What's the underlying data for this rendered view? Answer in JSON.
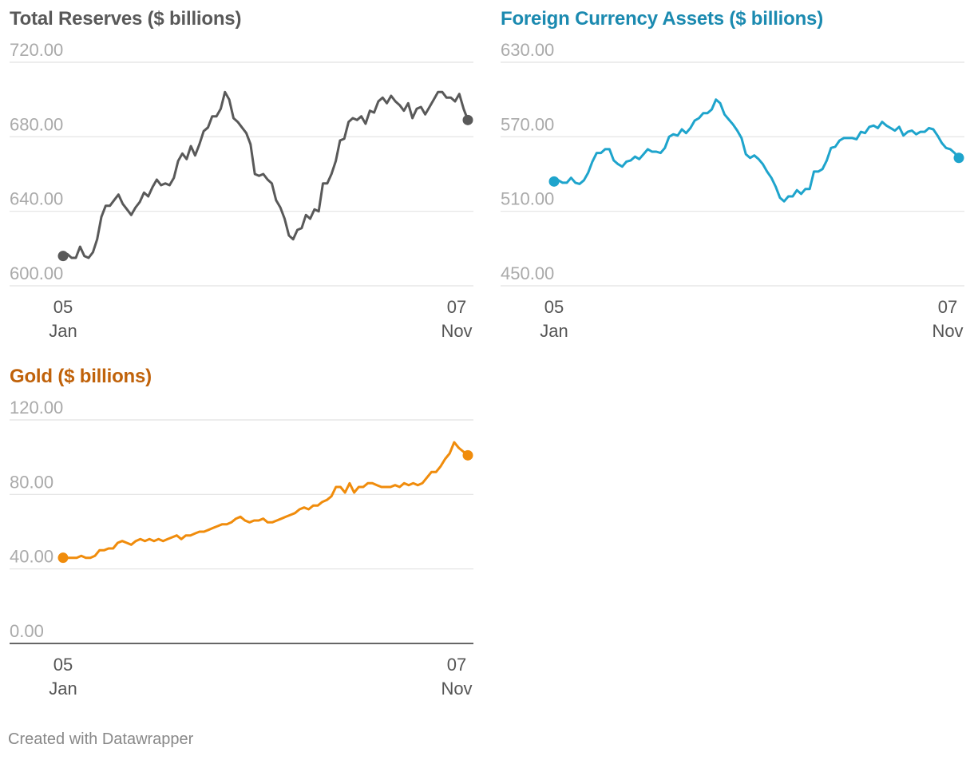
{
  "footer": {
    "credit": "Created with Datawrapper"
  },
  "chart_data": [
    {
      "type": "line",
      "title": "Total Reserves ($ billions)",
      "title_color": "#595959",
      "line_color": "#595959",
      "ylim": [
        600,
        720
      ],
      "yticks": [
        "720.00",
        "680.00",
        "640.00",
        "600.00"
      ],
      "xticks": [
        {
          "day": "05",
          "month": "Jan"
        },
        {
          "day": "07",
          "month": "Nov"
        }
      ],
      "values": [
        616,
        617,
        615,
        615,
        621,
        616,
        615,
        618,
        625,
        637,
        643,
        643,
        646,
        649,
        644,
        641,
        638,
        642,
        645,
        650,
        648,
        653,
        657,
        654,
        655,
        654,
        658,
        667,
        671,
        668,
        675,
        670,
        676,
        683,
        685,
        691,
        691,
        695,
        704,
        700,
        690,
        688,
        685,
        682,
        676,
        660,
        659,
        660,
        657,
        655,
        646,
        642,
        636,
        627,
        625,
        630,
        631,
        638,
        636,
        641,
        640,
        655,
        655,
        660,
        667,
        678,
        679,
        688,
        690,
        689,
        691,
        687,
        694,
        693,
        699,
        701,
        698,
        702,
        699,
        697,
        694,
        698,
        690,
        695,
        696,
        692,
        696,
        700,
        704,
        704,
        701,
        701,
        699,
        703,
        695,
        689
      ],
      "grid": true
    },
    {
      "type": "line",
      "title": "Foreign Currency Assets ($ billions)",
      "title_color": "#1b8ab0",
      "line_color": "#1ea4cc",
      "ylim": [
        450,
        630
      ],
      "yticks": [
        "630.00",
        "570.00",
        "510.00",
        "450.00"
      ],
      "xticks": [
        {
          "day": "05",
          "month": "Jan"
        },
        {
          "day": "07",
          "month": "Nov"
        }
      ],
      "values": [
        534,
        535,
        533,
        533,
        537,
        533,
        532,
        535,
        541,
        550,
        557,
        557,
        560,
        560,
        551,
        548,
        546,
        550,
        551,
        554,
        552,
        556,
        560,
        558,
        558,
        557,
        561,
        570,
        572,
        571,
        576,
        573,
        577,
        583,
        585,
        589,
        589,
        592,
        600,
        597,
        588,
        584,
        580,
        575,
        569,
        556,
        553,
        555,
        552,
        548,
        542,
        537,
        530,
        521,
        518,
        522,
        522,
        527,
        524,
        528,
        528,
        542,
        542,
        544,
        551,
        561,
        562,
        567,
        569,
        569,
        569,
        568,
        574,
        573,
        578,
        579,
        577,
        582,
        579,
        577,
        575,
        578,
        571,
        574,
        575,
        572,
        574,
        574,
        577,
        576,
        571,
        565,
        561,
        560,
        557,
        553
      ],
      "grid": true
    },
    {
      "type": "line",
      "title": "Gold ($ billions)",
      "title_color": "#c0620a",
      "line_color": "#f08c0c",
      "ylim": [
        0,
        120
      ],
      "yticks": [
        "120.00",
        "80.00",
        "40.00",
        "0.00"
      ],
      "xticks": [
        {
          "day": "05",
          "month": "Jan"
        },
        {
          "day": "07",
          "month": "Nov"
        }
      ],
      "values": [
        46,
        46,
        46,
        46,
        47,
        46,
        46,
        47,
        50,
        50,
        51,
        51,
        54,
        55,
        54,
        53,
        55,
        56,
        55,
        56,
        55,
        56,
        55,
        56,
        57,
        58,
        56,
        58,
        58,
        59,
        60,
        60,
        61,
        62,
        63,
        64,
        64,
        65,
        67,
        68,
        66,
        65,
        66,
        66,
        67,
        65,
        65,
        66,
        67,
        68,
        69,
        70,
        72,
        73,
        72,
        74,
        74,
        76,
        77,
        79,
        84,
        84,
        81,
        86,
        81,
        84,
        84,
        86,
        86,
        85,
        84,
        84,
        84,
        85,
        84,
        86,
        85,
        86,
        85,
        86,
        89,
        92,
        92,
        95,
        99,
        102,
        108,
        105,
        103,
        101
      ],
      "grid": true
    }
  ]
}
